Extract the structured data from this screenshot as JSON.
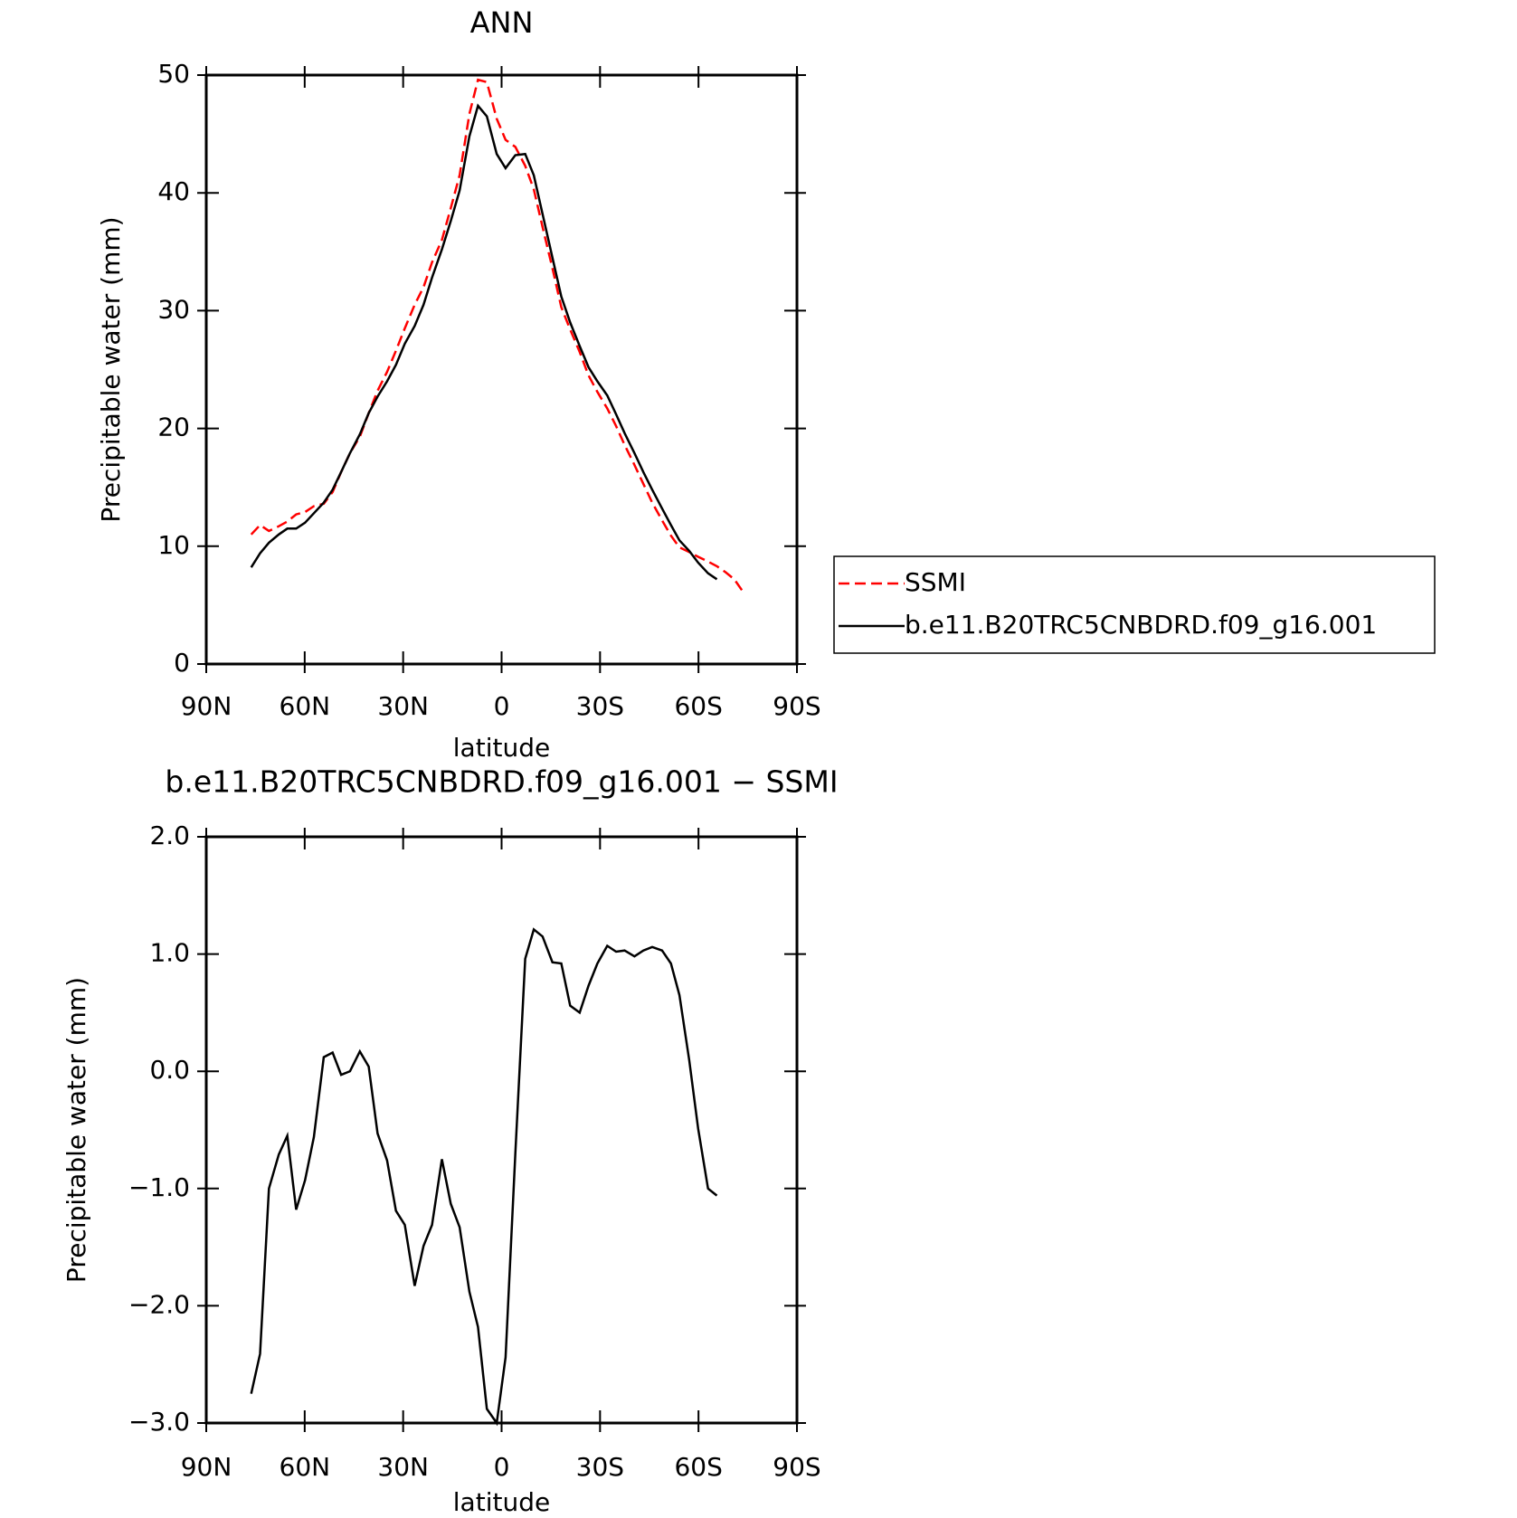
{
  "chart_data": [
    {
      "type": "line",
      "title": "ANN",
      "xlabel": "latitude",
      "ylabel": "Precipitable water (mm)",
      "xlim": [
        90,
        -90
      ],
      "xticks": [
        {
          "value": 90,
          "label": "90N"
        },
        {
          "value": 60,
          "label": "60N"
        },
        {
          "value": 30,
          "label": "30N"
        },
        0,
        {
          "value": -30,
          "label": "30S"
        },
        {
          "value": -60,
          "label": "60S"
        },
        {
          "value": -90,
          "label": "90S"
        }
      ],
      "ylim": [
        0,
        50
      ],
      "yticks": [
        0,
        10,
        20,
        30,
        40,
        50
      ],
      "legend": "right",
      "series": [
        {
          "name": "SSMI",
          "color": "#ff0000",
          "dashed": true,
          "x": [
            76.3,
            73.6,
            70.9,
            67.9,
            65.3,
            62.6,
            59.9,
            57.2,
            54.2,
            51.5,
            48.9,
            46.2,
            43.2,
            40.5,
            37.8,
            34.9,
            32.2,
            29.5,
            26.5,
            23.8,
            21.2,
            18.2,
            15.5,
            12.8,
            9.8,
            7.2,
            4.5,
            1.5,
            -1.2,
            -4.2,
            -7.2,
            -9.8,
            -12.5,
            -15.5,
            -18.2,
            -20.9,
            -23.8,
            -26.5,
            -29.2,
            -32.2,
            -34.9,
            -37.5,
            -40.5,
            -43.2,
            -45.9,
            -48.9,
            -51.6,
            -54.2,
            -57.2,
            -59.9,
            -62.9,
            -65.6,
            -68.2,
            -70.9,
            -73.9
          ],
          "values": [
            11.0,
            11.8,
            11.3,
            11.7,
            12.1,
            12.7,
            12.9,
            13.4,
            13.6,
            14.6,
            16.3,
            17.9,
            19.3,
            21.3,
            23.2,
            24.8,
            26.6,
            28.5,
            30.5,
            32.0,
            34.1,
            36.0,
            38.7,
            41.5,
            46.7,
            49.6,
            49.4,
            46.3,
            44.5,
            43.9,
            42.3,
            40.3,
            37.1,
            33.6,
            30.3,
            28.4,
            26.5,
            24.5,
            23.1,
            21.7,
            20.2,
            18.6,
            16.9,
            15.3,
            13.7,
            12.2,
            10.9,
            9.9,
            9.5,
            9.1,
            8.7,
            8.3,
            7.8,
            7.2,
            6.0
          ]
        },
        {
          "name": "b.e11.B20TRC5CNBDRD.f09_g16.001",
          "color": "#000000",
          "dashed": false,
          "x": [
            76.3,
            73.6,
            70.9,
            67.9,
            65.3,
            62.6,
            59.9,
            57.2,
            54.2,
            51.5,
            48.9,
            46.2,
            43.2,
            40.5,
            37.8,
            34.9,
            32.2,
            29.5,
            26.5,
            23.8,
            21.2,
            18.2,
            15.5,
            12.8,
            9.8,
            7.2,
            4.5,
            1.5,
            -1.2,
            -4.2,
            -7.2,
            -9.8,
            -12.5,
            -15.5,
            -18.2,
            -20.9,
            -23.8,
            -26.5,
            -29.2,
            -32.2,
            -34.9,
            -37.5,
            -40.5,
            -43.2,
            -45.9,
            -48.9,
            -51.6,
            -54.2,
            -57.2,
            -59.9,
            -62.9,
            -65.6
          ],
          "values": [
            8.2,
            9.4,
            10.3,
            11.0,
            11.5,
            11.5,
            12.0,
            12.8,
            13.7,
            14.8,
            16.3,
            17.9,
            19.5,
            21.3,
            22.7,
            24.0,
            25.4,
            27.2,
            28.7,
            30.5,
            32.8,
            35.2,
            37.6,
            40.2,
            44.8,
            47.4,
            46.5,
            43.3,
            42.1,
            43.2,
            43.3,
            41.5,
            38.2,
            34.5,
            31.2,
            29.0,
            27.0,
            25.2,
            24.0,
            22.8,
            21.2,
            19.6,
            17.9,
            16.3,
            14.8,
            13.2,
            11.8,
            10.5,
            9.6,
            8.6,
            7.7,
            7.2
          ]
        }
      ]
    },
    {
      "type": "line",
      "title": "b.e11.B20TRC5CNBDRD.f09_g16.001 − SSMI",
      "xlabel": "latitude",
      "ylabel": "Precipitable water (mm)",
      "xlim": [
        90,
        -90
      ],
      "xticks": [
        {
          "value": 90,
          "label": "90N"
        },
        {
          "value": 60,
          "label": "60N"
        },
        {
          "value": 30,
          "label": "30N"
        },
        0,
        {
          "value": -30,
          "label": "30S"
        },
        {
          "value": -60,
          "label": "60S"
        },
        {
          "value": -90,
          "label": "90S"
        }
      ],
      "ylim": [
        -3,
        2
      ],
      "yticks": [
        {
          "value": -3,
          "label": "−3.0"
        },
        {
          "value": -2,
          "label": "−2.0"
        },
        {
          "value": -1,
          "label": "−1.0"
        },
        {
          "value": 0,
          "label": "0.0"
        },
        {
          "value": 1,
          "label": "1.0"
        },
        {
          "value": 2,
          "label": "2.0"
        }
      ],
      "series": [
        {
          "color": "#000000",
          "dashed": false,
          "x": [
            76.3,
            73.6,
            70.9,
            67.9,
            65.3,
            62.6,
            59.9,
            57.2,
            54.2,
            51.5,
            48.9,
            46.2,
            43.2,
            40.5,
            37.8,
            34.9,
            32.2,
            29.5,
            26.5,
            23.8,
            21.2,
            18.2,
            15.5,
            12.8,
            9.8,
            7.2,
            4.5,
            1.5,
            -1.2,
            -4.2,
            -7.2,
            -9.8,
            -12.5,
            -15.5,
            -18.2,
            -20.9,
            -23.8,
            -26.5,
            -29.2,
            -32.2,
            -34.9,
            -37.5,
            -40.5,
            -43.2,
            -45.9,
            -48.9,
            -51.6,
            -54.2,
            -57.2,
            -59.9,
            -62.9,
            -65.6
          ],
          "values": [
            -2.75,
            -2.41,
            -1.0,
            -0.71,
            -0.55,
            -1.18,
            -0.93,
            -0.56,
            0.12,
            0.16,
            -0.03,
            0.0,
            0.17,
            0.04,
            -0.53,
            -0.76,
            -1.19,
            -1.31,
            -1.83,
            -1.49,
            -1.31,
            -0.75,
            -1.13,
            -1.33,
            -1.88,
            -2.18,
            -2.88,
            -3.0,
            -2.44,
            -0.7,
            0.96,
            1.21,
            1.15,
            0.93,
            0.92,
            0.56,
            0.5,
            0.73,
            0.92,
            1.07,
            1.02,
            1.03,
            0.98,
            1.03,
            1.06,
            1.03,
            0.92,
            0.65,
            0.09,
            -0.49,
            -1.0,
            -1.06
          ]
        }
      ]
    }
  ]
}
